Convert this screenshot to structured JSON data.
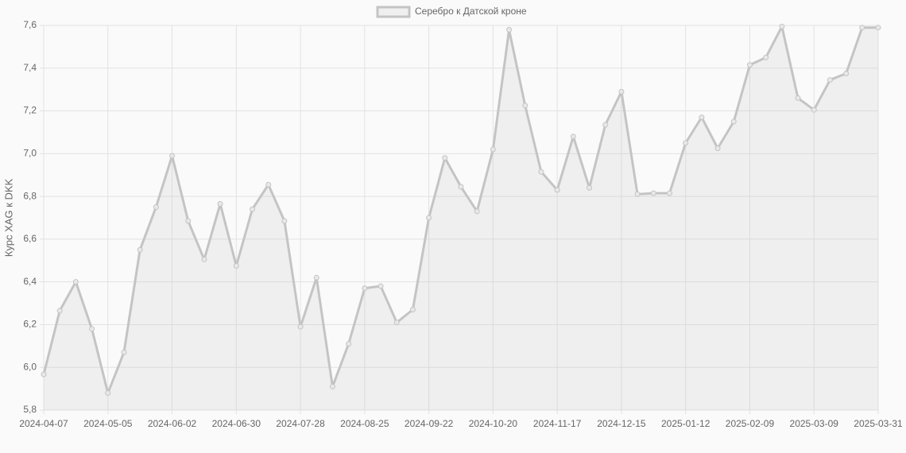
{
  "chart_data": {
    "type": "line",
    "y_label": "Курс XAG к DKK",
    "categories": [
      "2024-04-07",
      null,
      null,
      null,
      "2024-05-05",
      null,
      null,
      null,
      "2024-06-02",
      null,
      null,
      null,
      "2024-06-30",
      null,
      null,
      null,
      "2024-07-28",
      null,
      null,
      null,
      "2024-08-25",
      null,
      null,
      null,
      "2024-09-22",
      null,
      null,
      null,
      "2024-10-20",
      null,
      null,
      null,
      "2024-11-17",
      null,
      null,
      null,
      "2024-12-15",
      null,
      null,
      null,
      "2025-01-12",
      null,
      null,
      null,
      "2025-02-09",
      null,
      null,
      null,
      "2025-03-09",
      null,
      null,
      null,
      "2025-03-31"
    ],
    "series": [
      {
        "name": "Серебро к Датской кроне",
        "color": "#c4c4c4",
        "fill": true,
        "values": [
          5.967,
          6.265,
          6.4,
          6.18,
          5.88,
          6.07,
          6.55,
          6.75,
          6.99,
          6.685,
          6.505,
          6.765,
          6.475,
          6.74,
          6.855,
          6.685,
          6.19,
          6.42,
          5.91,
          6.11,
          6.37,
          6.38,
          6.21,
          6.27,
          6.7,
          6.98,
          6.845,
          6.73,
          7.02,
          7.58,
          7.225,
          6.915,
          6.83,
          7.08,
          6.84,
          7.135,
          7.29,
          6.81,
          6.815,
          6.815,
          7.05,
          7.17,
          7.025,
          7.15,
          7.415,
          7.45,
          7.595,
          7.26,
          7.205,
          7.345,
          7.375,
          7.59,
          7.59
        ]
      }
    ],
    "ylim": [
      5.8,
      7.6
    ],
    "yticks": [
      {
        "value": 5.8,
        "label": "5,8"
      },
      {
        "value": 6.0,
        "label": "6,0"
      },
      {
        "value": 6.2,
        "label": "6,2"
      },
      {
        "value": 6.4,
        "label": "6,4"
      },
      {
        "value": 6.6,
        "label": "6,6"
      },
      {
        "value": 6.8,
        "label": "6,8"
      },
      {
        "value": 7.0,
        "label": "7,0"
      },
      {
        "value": 7.2,
        "label": "7,2"
      },
      {
        "value": 7.4,
        "label": "7,4"
      },
      {
        "value": 7.6,
        "label": "7,6"
      }
    ],
    "grid": true,
    "legend": "top"
  }
}
